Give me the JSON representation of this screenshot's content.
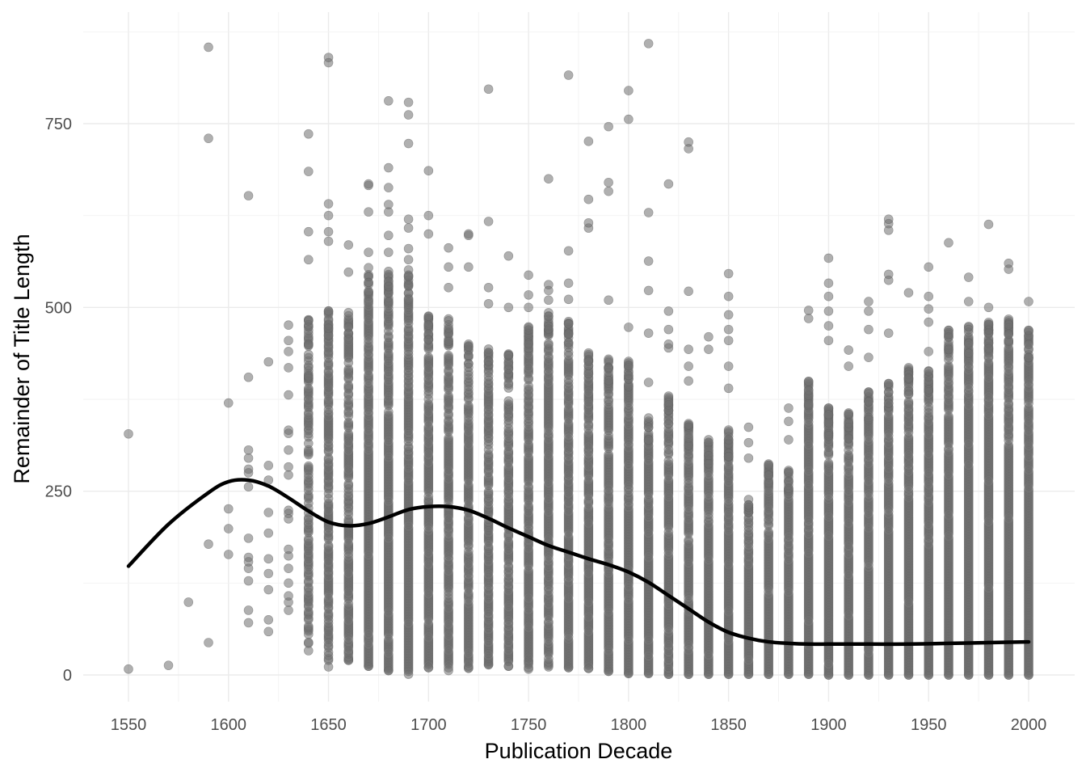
{
  "chart_data": {
    "type": "scatter",
    "title": "",
    "xlabel": "Publication Decade",
    "ylabel": "Remainder of Title Length",
    "xlim": [
      1545,
      2005
    ],
    "ylim": [
      -30,
      880
    ],
    "x_ticks": [
      "1550",
      "1600",
      "1650",
      "1700",
      "1750",
      "1800",
      "1850",
      "1900",
      "1950",
      "2000"
    ],
    "y_ticks": [
      "0",
      "250",
      "500",
      "750"
    ],
    "x_tick_values": [
      1550,
      1600,
      1650,
      1700,
      1750,
      1800,
      1850,
      1900,
      1950,
      2000
    ],
    "y_tick_values": [
      0,
      250,
      500,
      750
    ],
    "grid": true,
    "legend": "none",
    "point_color": "#707070",
    "line_color": "#000000",
    "decades": [
      {
        "x": 1550,
        "points": [
          8,
          328
        ]
      },
      {
        "x": 1570,
        "points": [
          13
        ]
      },
      {
        "x": 1580,
        "points": [
          99
        ]
      },
      {
        "x": 1590,
        "points": [
          44,
          178,
          730,
          854
        ]
      },
      {
        "x": 1600,
        "points": [
          164,
          199,
          226,
          370
        ]
      },
      {
        "x": 1610,
        "points": [
          71,
          88,
          128,
          145,
          154,
          160,
          186,
          256,
          275,
          280,
          295,
          306,
          405,
          652
        ]
      },
      {
        "x": 1620,
        "points": [
          59,
          75,
          116,
          138,
          158,
          193,
          221,
          265,
          285,
          426
        ]
      },
      {
        "x": 1630,
        "points": [
          88,
          99,
          125,
          145,
          162,
          171,
          224,
          272,
          283,
          306,
          333,
          381,
          418,
          440,
          455,
          476
        ],
        "extra_sparse": [
          10,
          330,
          4
        ]
      },
      {
        "x": 1640,
        "points": [
          33,
          43,
          565,
          603,
          685,
          736
        ],
        "band": [
          40,
          485,
          0.62
        ],
        "extra_sparse": [
          350,
          485,
          6
        ]
      },
      {
        "x": 1650,
        "points": [
          11,
          590,
          603,
          625,
          641,
          833,
          840
        ],
        "band": [
          20,
          500,
          0.78
        ]
      },
      {
        "x": 1660,
        "points": [
          20,
          548,
          585
        ],
        "band": [
          20,
          495,
          0.8
        ]
      },
      {
        "x": 1670,
        "points": [
          12,
          554,
          575,
          630,
          666,
          668
        ],
        "band": [
          12,
          545,
          0.94
        ]
      },
      {
        "x": 1680,
        "points": [
          6,
          549,
          575,
          598,
          630,
          640,
          663,
          690,
          781
        ],
        "band": [
          6,
          545,
          0.95
        ]
      },
      {
        "x": 1690,
        "points": [
          1,
          551,
          565,
          580,
          608,
          620,
          723,
          762,
          779
        ],
        "band": [
          5,
          545,
          0.96
        ]
      },
      {
        "x": 1700,
        "points": [
          10,
          600,
          625,
          686
        ],
        "band": [
          10,
          490,
          0.9
        ]
      },
      {
        "x": 1710,
        "points": [
          6,
          527,
          555,
          581
        ],
        "band": [
          10,
          485,
          0.86
        ]
      },
      {
        "x": 1720,
        "points": [
          9,
          555,
          598,
          600
        ],
        "band": [
          10,
          450,
          0.85
        ]
      },
      {
        "x": 1730,
        "points": [
          14,
          505,
          527,
          617,
          797
        ],
        "band": [
          14,
          445,
          0.85
        ]
      },
      {
        "x": 1740,
        "points": [
          12,
          500,
          570
        ],
        "band": [
          12,
          440,
          0.87
        ]
      },
      {
        "x": 1750,
        "points": [
          8,
          20,
          500,
          517,
          544
        ],
        "band": [
          8,
          475,
          0.9
        ]
      },
      {
        "x": 1760,
        "points": [
          11,
          510,
          523,
          531,
          675
        ],
        "band": [
          11,
          495,
          0.9
        ]
      },
      {
        "x": 1770,
        "points": [
          10,
          511,
          533,
          577,
          816
        ],
        "band": [
          10,
          485,
          0.92
        ]
      },
      {
        "x": 1780,
        "points": [
          9,
          608,
          615,
          647,
          726
        ],
        "band": [
          9,
          440,
          0.93
        ]
      },
      {
        "x": 1790,
        "points": [
          5,
          510,
          658,
          670,
          746
        ],
        "band": [
          5,
          430,
          0.96
        ]
      },
      {
        "x": 1800,
        "points": [
          2,
          473,
          756,
          795
        ],
        "band": [
          2,
          430,
          0.97
        ]
      },
      {
        "x": 1810,
        "points": [
          2,
          398,
          465,
          523,
          563,
          629,
          859
        ],
        "band": [
          2,
          350,
          0.9
        ]
      },
      {
        "x": 1820,
        "points": [
          1,
          445,
          450,
          470,
          495,
          668
        ],
        "band": [
          1,
          380,
          0.9
        ]
      },
      {
        "x": 1830,
        "points": [
          1,
          400,
          420,
          443,
          522,
          716,
          725
        ],
        "band": [
          1,
          350,
          0.93
        ]
      },
      {
        "x": 1840,
        "points": [
          1,
          443,
          460
        ],
        "band": [
          1,
          320,
          0.95
        ]
      },
      {
        "x": 1850,
        "points": [
          1,
          390,
          420,
          455,
          470,
          490,
          515,
          546
        ],
        "band": [
          1,
          335,
          0.97
        ]
      },
      {
        "x": 1860,
        "points": [
          1,
          295,
          316,
          337
        ],
        "band": [
          1,
          240,
          0.98
        ]
      },
      {
        "x": 1870,
        "points": [
          1
        ],
        "band": [
          1,
          290,
          0.98
        ]
      },
      {
        "x": 1880,
        "points": [
          1,
          320,
          345,
          363
        ],
        "band": [
          1,
          280,
          0.98
        ]
      },
      {
        "x": 1890,
        "points": [
          1,
          485,
          496
        ],
        "band": [
          1,
          400,
          0.98
        ]
      },
      {
        "x": 1900,
        "points": [
          0,
          455,
          475,
          495,
          515,
          533,
          567
        ],
        "band": [
          0,
          365,
          0.99
        ]
      },
      {
        "x": 1910,
        "points": [
          0,
          420,
          442
        ],
        "band": [
          0,
          358,
          0.99
        ]
      },
      {
        "x": 1920,
        "points": [
          0,
          432,
          470,
          495,
          508
        ],
        "band": [
          0,
          385,
          0.99
        ]
      },
      {
        "x": 1930,
        "points": [
          0,
          465,
          537,
          545,
          605,
          614,
          620
        ],
        "band": [
          0,
          400,
          0.99
        ]
      },
      {
        "x": 1940,
        "points": [
          0,
          520
        ],
        "band": [
          0,
          420,
          0.99
        ]
      },
      {
        "x": 1950,
        "points": [
          0,
          440,
          480,
          498,
          515,
          555
        ],
        "band": [
          0,
          415,
          0.99
        ]
      },
      {
        "x": 1960,
        "points": [
          0,
          588
        ],
        "band": [
          0,
          470,
          0.99
        ]
      },
      {
        "x": 1970,
        "points": [
          0,
          508,
          541
        ],
        "band": [
          0,
          475,
          0.99
        ]
      },
      {
        "x": 1980,
        "points": [
          0,
          500,
          613
        ],
        "band": [
          0,
          480,
          0.99
        ]
      },
      {
        "x": 1990,
        "points": [
          0,
          552,
          560
        ],
        "band": [
          0,
          485,
          0.99
        ]
      },
      {
        "x": 2000,
        "points": [
          0,
          508
        ],
        "band": [
          0,
          470,
          0.99
        ]
      }
    ],
    "smooth": {
      "x": [
        1550,
        1570,
        1590,
        1600,
        1610,
        1620,
        1630,
        1640,
        1650,
        1660,
        1670,
        1680,
        1690,
        1700,
        1710,
        1720,
        1730,
        1740,
        1750,
        1760,
        1770,
        1780,
        1790,
        1800,
        1810,
        1820,
        1830,
        1840,
        1850,
        1860,
        1870,
        1880,
        1890,
        1900,
        1920,
        1940,
        1960,
        1980,
        2000
      ],
      "y": [
        148,
        205,
        248,
        263,
        265,
        257,
        241,
        223,
        208,
        203,
        206,
        215,
        225,
        229,
        229,
        224,
        213,
        200,
        188,
        176,
        167,
        158,
        150,
        140,
        126,
        108,
        90,
        72,
        58,
        50,
        45,
        43,
        42,
        42,
        42,
        42,
        43,
        44,
        45
      ]
    }
  }
}
